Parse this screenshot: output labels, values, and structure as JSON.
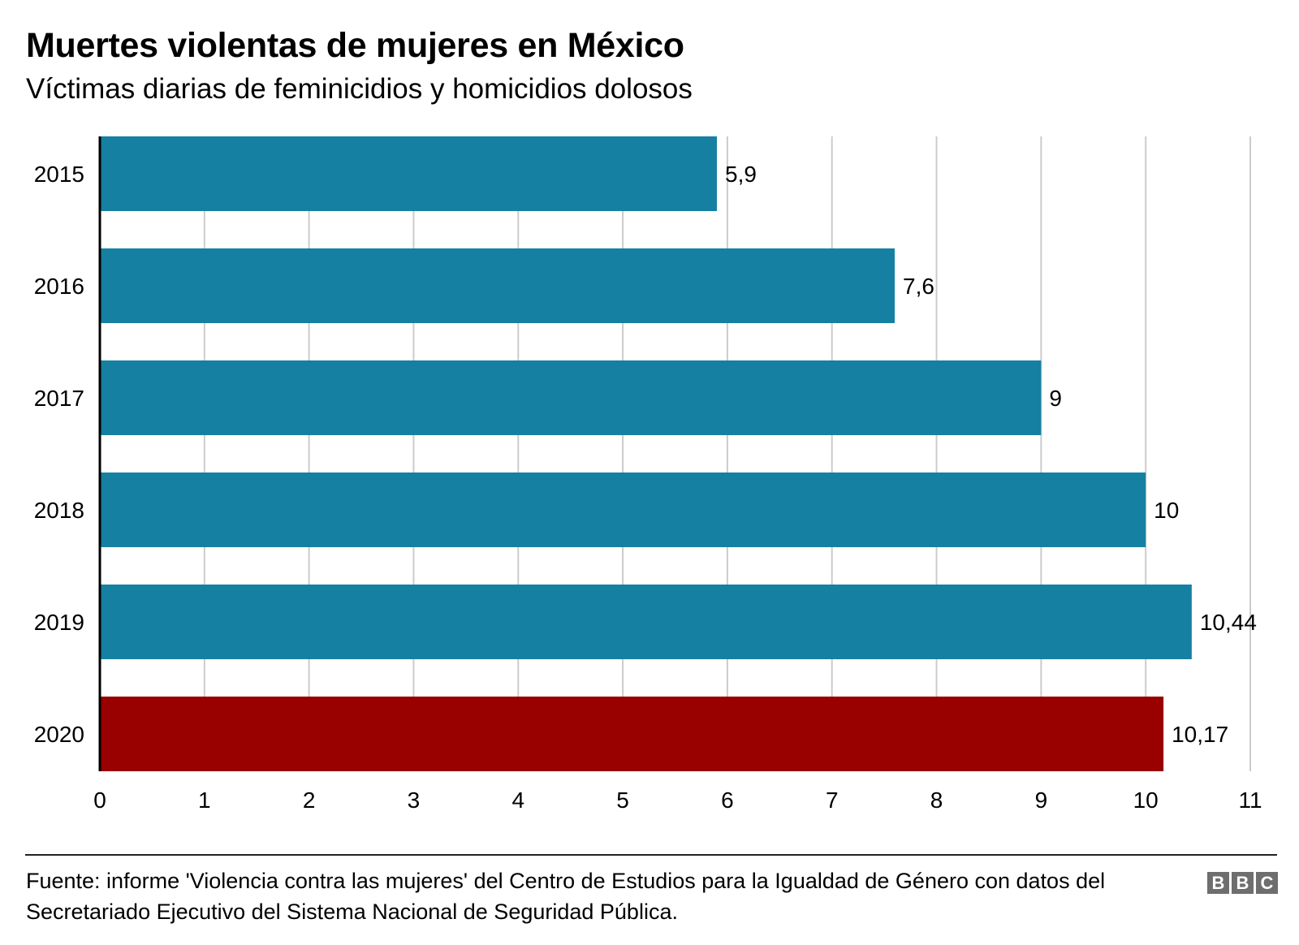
{
  "header": {
    "title": "Muertes violentas de mujeres en México",
    "subtitle": "Víctimas diarias de feminicidios y homicidios dolosos"
  },
  "chart_data": {
    "type": "bar",
    "orientation": "horizontal",
    "title": "Muertes violentas de mujeres en México",
    "subtitle": "Víctimas diarias de feminicidios y homicidios dolosos",
    "xlabel": "",
    "ylabel": "",
    "categories": [
      "2015",
      "2016",
      "2017",
      "2018",
      "2019",
      "2020"
    ],
    "values": [
      5.9,
      7.6,
      9,
      10,
      10.44,
      10.17
    ],
    "value_labels": [
      "5,9",
      "7,6",
      "9",
      "10",
      "10,44",
      "10,17"
    ],
    "bar_colors": [
      "#1580a2",
      "#1580a2",
      "#1580a2",
      "#1580a2",
      "#1580a2",
      "#990000"
    ],
    "highlight_category": "2020",
    "xlim": [
      0,
      11
    ],
    "x_ticks": [
      0,
      1,
      2,
      3,
      4,
      5,
      6,
      7,
      8,
      9,
      10,
      11
    ],
    "x_tick_labels": [
      "0",
      "1",
      "2",
      "3",
      "4",
      "5",
      "6",
      "7",
      "8",
      "9",
      "10",
      "11"
    ],
    "grid": true,
    "grid_color": "#cccccc",
    "legend": "none"
  },
  "footer": {
    "source": "Fuente: informe 'Violencia contra las mujeres' del Centro de Estudios para la Igualdad de Género con datos del Secretariado Ejecutivo del Sistema Nacional de Seguridad Pública.",
    "logo_letters": [
      "B",
      "B",
      "C"
    ]
  }
}
